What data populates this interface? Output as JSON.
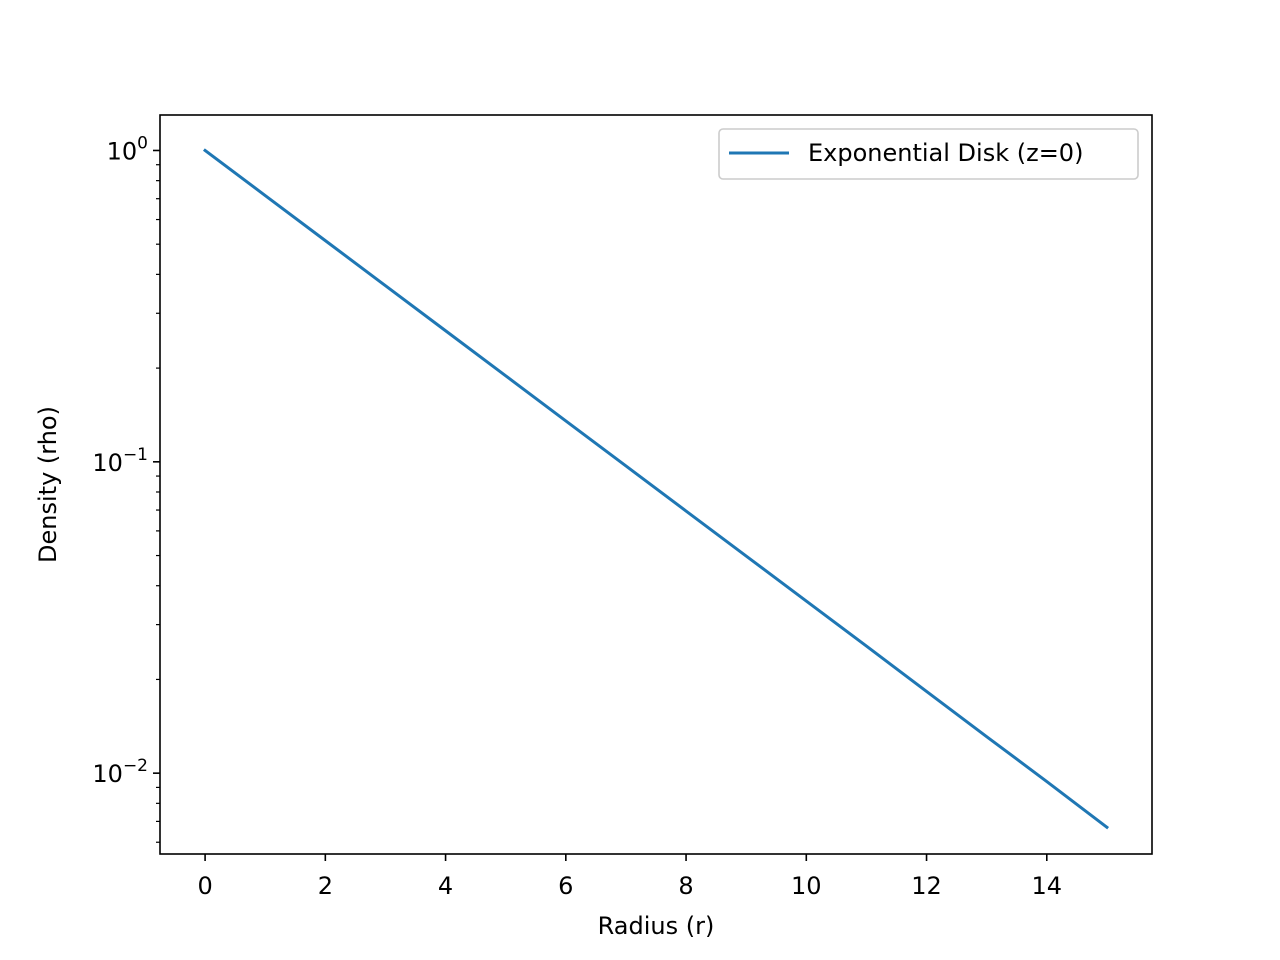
{
  "chart_data": {
    "type": "line",
    "title": "",
    "xlabel": "Radius (r)",
    "ylabel": "Density (rho)",
    "x_scale": "linear",
    "y_scale": "log",
    "xlim": [
      -0.75,
      15.75
    ],
    "ylim": [
      0.0055,
      1.3
    ],
    "x_ticks": [
      0,
      2,
      4,
      6,
      8,
      10,
      12,
      14
    ],
    "x_tick_labels": [
      "0",
      "2",
      "4",
      "6",
      "8",
      "10",
      "12",
      "14"
    ],
    "y_ticks": [
      {
        "value": 1,
        "base": "10",
        "exponent": "0"
      },
      {
        "value": 0.1,
        "base": "10",
        "exponent": "−1"
      },
      {
        "value": 0.01,
        "base": "10",
        "exponent": "−2"
      }
    ],
    "grid": false,
    "legend": {
      "position": "top-right",
      "entries": [
        "Exponential Disk (z=0)"
      ]
    },
    "series": [
      {
        "name": "Exponential Disk (z=0)",
        "color": "#1f77b4",
        "x": [
          0,
          1,
          2,
          3,
          4,
          5,
          6,
          7,
          8,
          9,
          10,
          11,
          12,
          13,
          14,
          15
        ],
        "y": [
          1.0,
          0.7165,
          0.5134,
          0.3679,
          0.2636,
          0.1889,
          0.1353,
          0.097,
          0.0695,
          0.0498,
          0.0357,
          0.0256,
          0.0183,
          0.0131,
          0.0094,
          0.0067
        ]
      }
    ]
  }
}
